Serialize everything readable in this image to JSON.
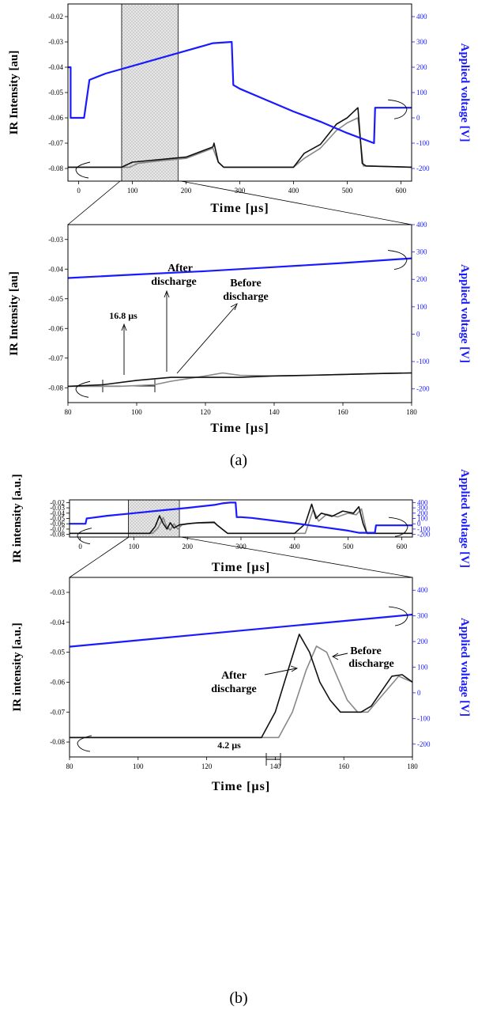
{
  "chart_data": [
    {
      "type": "line",
      "panel": "a-overview",
      "xlabel": "Time  [µs]",
      "ylabel": "IR Intensity [au]",
      "ylabel_right": "Applied voltage [V]",
      "xlim": [
        -20,
        620
      ],
      "ylim": [
        -0.085,
        -0.015
      ],
      "ylim_right": [
        -250,
        450
      ],
      "xticks": [
        0,
        100,
        200,
        300,
        400,
        500,
        600
      ],
      "yticks": [
        -0.08,
        -0.07,
        -0.06,
        -0.05,
        -0.04,
        -0.03,
        -0.02
      ],
      "yticks_right": [
        -200,
        -100,
        0,
        100,
        200,
        300,
        400
      ],
      "shaded_region_x": [
        80,
        185
      ],
      "series": [
        {
          "axis": "right",
          "color": "#1a1aff",
          "x": [
            -20,
            -15,
            -15,
            5,
            10,
            20,
            50,
            100,
            150,
            200,
            250,
            285,
            288,
            300,
            350,
            400,
            450,
            500,
            550,
            552,
            620
          ],
          "y": [
            200,
            200,
            0,
            0,
            0,
            150,
            175,
            205,
            235,
            265,
            295,
            300,
            130,
            115,
            70,
            25,
            -15,
            -60,
            -100,
            40,
            40
          ]
        },
        {
          "axis": "left",
          "color": "#111111",
          "x": [
            -20,
            80,
            100,
            150,
            200,
            250,
            252,
            260,
            270,
            300,
            350,
            400,
            420,
            450,
            480,
            500,
            510,
            520,
            528,
            535,
            620
          ],
          "y": [
            -0.0795,
            -0.0795,
            -0.0775,
            -0.0765,
            -0.0755,
            -0.0715,
            -0.07,
            -0.0775,
            -0.0795,
            -0.0795,
            -0.0795,
            -0.0795,
            -0.074,
            -0.0705,
            -0.0625,
            -0.06,
            -0.058,
            -0.056,
            -0.078,
            -0.079,
            -0.0795
          ]
        },
        {
          "axis": "left",
          "color": "#888888",
          "x": [
            -20,
            95,
            110,
            150,
            200,
            250,
            260,
            270,
            300,
            400,
            420,
            450,
            480,
            500,
            520,
            530,
            620
          ],
          "y": [
            -0.0795,
            -0.0795,
            -0.078,
            -0.077,
            -0.076,
            -0.072,
            -0.0775,
            -0.0795,
            -0.0795,
            -0.0795,
            -0.076,
            -0.072,
            -0.065,
            -0.062,
            -0.06,
            -0.079,
            -0.0795
          ]
        }
      ]
    },
    {
      "type": "line",
      "panel": "a-zoom",
      "xlabel": "Time  [µs]",
      "ylabel": "IR Intensity [au]",
      "ylabel_right": "Applied voltage [V]",
      "xlim": [
        80,
        180
      ],
      "ylim": [
        -0.085,
        -0.025
      ],
      "ylim_right": [
        -250,
        400
      ],
      "xticks": [
        80,
        100,
        120,
        140,
        160,
        180
      ],
      "yticks": [
        -0.08,
        -0.07,
        -0.06,
        -0.05,
        -0.04,
        -0.03
      ],
      "yticks_right": [
        -200,
        -100,
        0,
        100,
        200,
        300,
        400
      ],
      "series": [
        {
          "axis": "right",
          "color": "#1a1aff",
          "x": [
            80,
            100,
            120,
            140,
            160,
            180
          ],
          "y": [
            205,
            218,
            230,
            245,
            260,
            277
          ]
        },
        {
          "axis": "left",
          "color": "#111111",
          "x": [
            80,
            90,
            100,
            110,
            120,
            130,
            140,
            150,
            160,
            170,
            180
          ],
          "y": [
            -0.0795,
            -0.079,
            -0.0775,
            -0.0765,
            -0.0765,
            -0.0765,
            -0.076,
            -0.0758,
            -0.0755,
            -0.0752,
            -0.075
          ]
        },
        {
          "axis": "left",
          "color": "#888888",
          "x": [
            80,
            95,
            105,
            110,
            120,
            125,
            130,
            140,
            150,
            160,
            170,
            180
          ],
          "y": [
            -0.0795,
            -0.0795,
            -0.079,
            -0.0778,
            -0.076,
            -0.075,
            -0.0758,
            -0.076,
            -0.0758,
            -0.0755,
            -0.0752,
            -0.075
          ]
        }
      ]
    },
    {
      "type": "line",
      "panel": "b-overview",
      "xlabel": "Time  [µs]",
      "ylabel": "IR intensity [a.u.]",
      "ylabel_right": "Applied voltage [V]",
      "xlim": [
        -20,
        620
      ],
      "ylim": [
        -0.085,
        -0.015
      ],
      "ylim_right": [
        -250,
        450
      ],
      "xticks": [
        0,
        100,
        200,
        300,
        400,
        500,
        600
      ],
      "yticks": [
        -0.08,
        -0.07,
        -0.06,
        -0.05,
        -0.04,
        -0.03,
        -0.02
      ],
      "yticks_right": [
        -200,
        -100,
        0,
        100,
        200,
        300,
        400
      ],
      "shaded_region_x": [
        90,
        185
      ],
      "series": [
        {
          "axis": "right",
          "color": "#1a1aff",
          "x": [
            -20,
            10,
            12,
            20,
            50,
            100,
            150,
            200,
            250,
            265,
            280,
            290,
            292,
            300,
            320,
            400,
            450,
            500,
            520,
            550,
            552,
            620
          ],
          "y": [
            0,
            0,
            100,
            110,
            150,
            200,
            250,
            300,
            355,
            385,
            400,
            400,
            125,
            125,
            110,
            10,
            -60,
            -130,
            -170,
            -170,
            -30,
            -30
          ]
        },
        {
          "axis": "left",
          "color": "#111111",
          "x": [
            -20,
            130,
            140,
            148,
            155,
            162,
            168,
            175,
            185,
            200,
            220,
            250,
            255,
            275,
            300,
            400,
            420,
            432,
            440,
            450,
            470,
            490,
            510,
            520,
            528,
            535,
            620
          ],
          "y": [
            -0.078,
            -0.078,
            -0.065,
            -0.045,
            -0.06,
            -0.07,
            -0.058,
            -0.068,
            -0.062,
            -0.06,
            -0.058,
            -0.057,
            -0.062,
            -0.078,
            -0.078,
            -0.078,
            -0.06,
            -0.023,
            -0.05,
            -0.04,
            -0.046,
            -0.036,
            -0.04,
            -0.028,
            -0.06,
            -0.078,
            -0.078
          ]
        },
        {
          "axis": "left",
          "color": "#888888",
          "x": [
            -20,
            135,
            145,
            155,
            160,
            168,
            175,
            182,
            190,
            210,
            250,
            255,
            275,
            300,
            420,
            435,
            445,
            460,
            480,
            500,
            515,
            525,
            535,
            620
          ],
          "y": [
            -0.078,
            -0.078,
            -0.068,
            -0.048,
            -0.063,
            -0.072,
            -0.06,
            -0.07,
            -0.062,
            -0.059,
            -0.058,
            -0.062,
            -0.078,
            -0.078,
            -0.078,
            -0.033,
            -0.055,
            -0.042,
            -0.047,
            -0.04,
            -0.043,
            -0.032,
            -0.078,
            -0.078
          ]
        }
      ]
    },
    {
      "type": "line",
      "panel": "b-zoom",
      "xlabel": "Time  [µs]",
      "ylabel": "IR intensity [a.u.]",
      "ylabel_right": "Applied voltage [V]",
      "xlim": [
        80,
        180
      ],
      "ylim": [
        -0.085,
        -0.025
      ],
      "ylim_right": [
        -250,
        450
      ],
      "xticks": [
        80,
        100,
        120,
        140,
        160,
        180
      ],
      "yticks": [
        -0.08,
        -0.07,
        -0.06,
        -0.05,
        -0.04,
        -0.03
      ],
      "yticks_right": [
        -200,
        -100,
        0,
        100,
        200,
        300,
        400
      ],
      "series": [
        {
          "axis": "right",
          "color": "#1a1aff",
          "x": [
            80,
            100,
            120,
            140,
            160,
            180
          ],
          "y": [
            180,
            205,
            230,
            255,
            280,
            305
          ]
        },
        {
          "axis": "left",
          "color": "#111111",
          "x": [
            80,
            136,
            140,
            144,
            147,
            150,
            153,
            156,
            159,
            162,
            165,
            168,
            171,
            174,
            177,
            180
          ],
          "y": [
            -0.0785,
            -0.0785,
            -0.07,
            -0.055,
            -0.044,
            -0.05,
            -0.06,
            -0.066,
            -0.07,
            -0.07,
            -0.07,
            -0.068,
            -0.063,
            -0.058,
            -0.0575,
            -0.06
          ]
        },
        {
          "axis": "left",
          "color": "#888888",
          "x": [
            80,
            141,
            145,
            149,
            152,
            155,
            158,
            161,
            164,
            167,
            170,
            173,
            176,
            180
          ],
          "y": [
            -0.0785,
            -0.0785,
            -0.07,
            -0.056,
            -0.048,
            -0.05,
            -0.058,
            -0.066,
            -0.07,
            -0.07,
            -0.066,
            -0.062,
            -0.058,
            -0.06
          ]
        }
      ]
    }
  ],
  "annotations": {
    "a_after": "After",
    "a_after2": "discharge",
    "a_before": "Before",
    "a_before2": "discharge",
    "a_delay": "16.8 µs",
    "b_after": "After",
    "b_after2": "discharge",
    "b_before": "Before",
    "b_before2": "discharge",
    "b_delay": "4.2 µs"
  },
  "captions": {
    "a": "(a)",
    "b": "(b)"
  },
  "colors": {
    "voltage": "#1a1aff",
    "after": "#111111",
    "before": "#888888"
  }
}
